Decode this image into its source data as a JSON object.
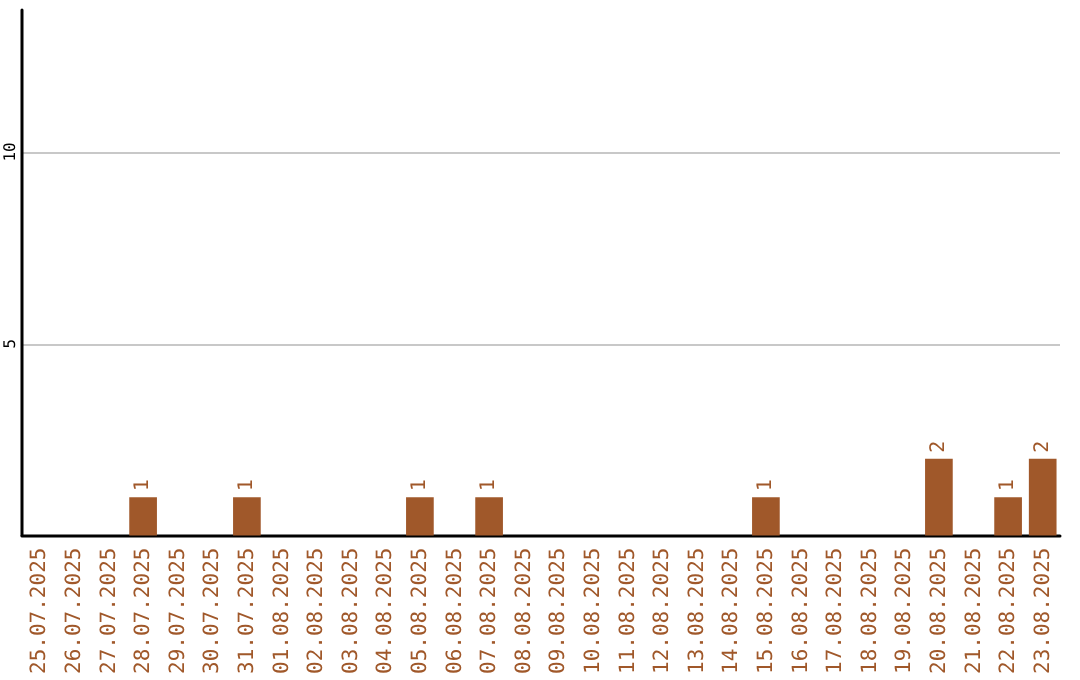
{
  "chart_data": {
    "type": "bar",
    "categories": [
      "25.07.2025",
      "26.07.2025",
      "27.07.2025",
      "28.07.2025",
      "29.07.2025",
      "30.07.2025",
      "31.07.2025",
      "01.08.2025",
      "02.08.2025",
      "03.08.2025",
      "04.08.2025",
      "05.08.2025",
      "06.08.2025",
      "07.08.2025",
      "08.08.2025",
      "09.08.2025",
      "10.08.2025",
      "11.08.2025",
      "12.08.2025",
      "13.08.2025",
      "14.08.2025",
      "15.08.2025",
      "16.08.2025",
      "17.08.2025",
      "18.08.2025",
      "19.08.2025",
      "20.08.2025",
      "21.08.2025",
      "22.08.2025",
      "23.08.2025"
    ],
    "values": [
      0,
      0,
      0,
      1,
      0,
      0,
      1,
      0,
      0,
      0,
      0,
      1,
      0,
      1,
      0,
      0,
      0,
      0,
      0,
      0,
      0,
      1,
      0,
      0,
      0,
      0,
      2,
      0,
      1,
      2
    ],
    "value_labels": [
      null,
      null,
      null,
      "1",
      null,
      null,
      "1",
      null,
      null,
      null,
      null,
      "1",
      null,
      "1",
      null,
      null,
      null,
      null,
      null,
      null,
      null,
      "1",
      null,
      null,
      null,
      null,
      "2",
      null,
      "1",
      "2"
    ],
    "color": "#a0582a",
    "ylim": [
      0,
      13.7
    ],
    "yticks": [
      5,
      10
    ],
    "grid": "y"
  }
}
